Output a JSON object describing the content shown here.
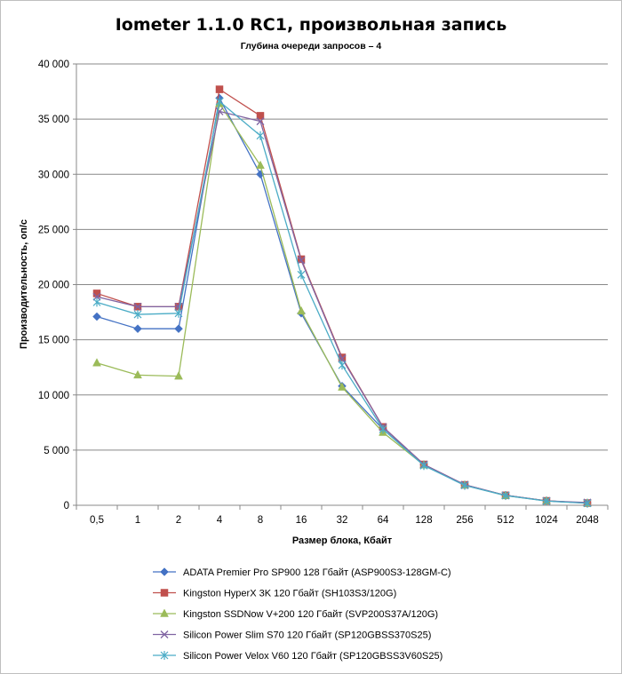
{
  "chart_data": {
    "type": "line",
    "title": "Iometer 1.1.0 RC1, произвольная запись",
    "subtitle": "Глубина очереди запросов – 4",
    "xlabel": "Размер блока, Кбайт",
    "ylabel": "Производительность,  оп/с",
    "categories": [
      "0,5",
      "1",
      "2",
      "4",
      "8",
      "16",
      "32",
      "64",
      "128",
      "256",
      "512",
      "1024",
      "2048"
    ],
    "ylim": [
      0,
      40000
    ],
    "yticks": [
      0,
      5000,
      10000,
      15000,
      20000,
      25000,
      30000,
      35000,
      40000
    ],
    "ytick_labels": [
      "0",
      "5 000",
      "10 000",
      "15 000",
      "20 000",
      "25 000",
      "30 000",
      "35 000",
      "40 000"
    ],
    "grid": "horizontal",
    "legend_position": "bottom",
    "series": [
      {
        "name": "ADATA  Premier Pro SP900 128 Гбайт (ASP900S3-128GM-C)",
        "color": "#4472C4",
        "marker": "diamond",
        "values": [
          17100,
          16000,
          16000,
          36900,
          30000,
          17400,
          10800,
          6900,
          3700,
          1850,
          900,
          400,
          200
        ]
      },
      {
        "name": "Kingston HyperX 3K 120 Гбайт (SH103S3/120G)",
        "color": "#C0504D",
        "marker": "square",
        "values": [
          19200,
          18000,
          18000,
          37700,
          35300,
          22300,
          13400,
          7100,
          3700,
          1850,
          900,
          400,
          200
        ]
      },
      {
        "name": "Kingston SSDNow  V+200 120 Гбайт (SVP200S37A/120G)",
        "color": "#9BBB59",
        "marker": "triangle",
        "values": [
          12900,
          11800,
          11700,
          36400,
          30800,
          17600,
          10700,
          6600,
          3650,
          1830,
          880,
          400,
          200
        ]
      },
      {
        "name": "Silicon Power Slim S70 120 Гбайт (SP120GBSS370S25)",
        "color": "#8064A2",
        "marker": "x",
        "values": [
          18900,
          18000,
          18000,
          35700,
          34800,
          22200,
          13300,
          7100,
          3700,
          1860,
          900,
          400,
          250
        ]
      },
      {
        "name": "Silicon Power Velox V60 120 Гбайт (SP120GBSS3V60S25)",
        "color": "#4BACC6",
        "marker": "star",
        "values": [
          18400,
          17300,
          17400,
          36600,
          33500,
          20900,
          12700,
          6900,
          3600,
          1800,
          880,
          380,
          180
        ]
      }
    ]
  }
}
